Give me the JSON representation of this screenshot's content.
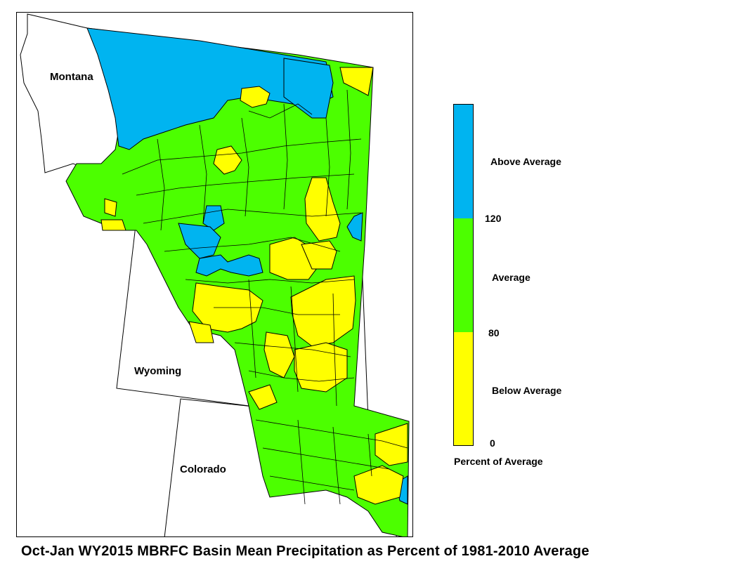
{
  "map": {
    "title": "Oct-Jan WY2015 MBRFC Basin Mean Precipitation as Percent of 1981-2010 Average",
    "state_labels": [
      "Montana",
      "Wyoming",
      "Colorado"
    ]
  },
  "legend": {
    "categories": [
      {
        "label": "Above Average",
        "color": "#00b4f0"
      },
      {
        "label": "Average",
        "color": "#4cff00"
      },
      {
        "label": "Below Average",
        "color": "#ffff00"
      }
    ],
    "breaks": [
      "120",
      "80",
      "0"
    ],
    "caption": "Percent of Average"
  }
}
